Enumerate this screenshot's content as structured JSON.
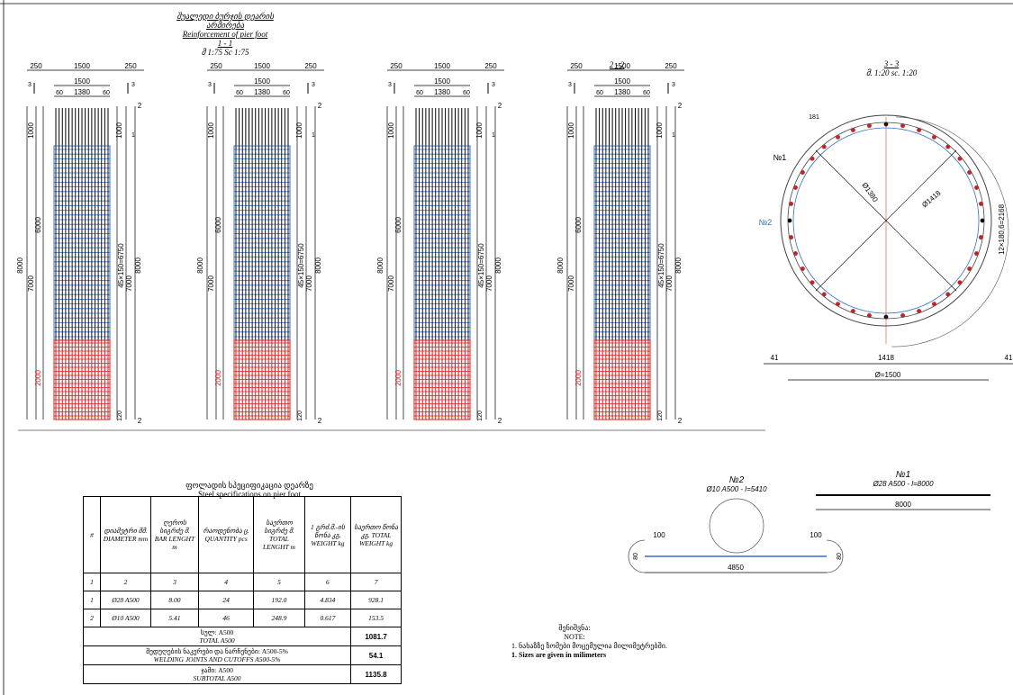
{
  "header": {
    "title_ka": "შუალედი ბურჯის დეარის არმირება",
    "title_en": "Reinforcement of pier foot",
    "section": "1 - 1",
    "scale": "მ 1:75 Sc 1:75"
  },
  "elevations": {
    "section2_label": "2 - 2",
    "dim_overall": "1500",
    "dim_side": "250",
    "dim_inner": "1500",
    "dim_core": "1380",
    "dim_edge": "60",
    "h_total": "8000",
    "h_top": "1000",
    "h_mid": "6000",
    "h_low": "7000",
    "h_bottom": "2000",
    "h_stirrup": "45×150=6750",
    "h_foot": "120",
    "cut_mark_3": "3",
    "cut_mark_2": "2",
    "cut_mark_1": "1"
  },
  "section33": {
    "label": "3 - 3",
    "scale": "მ. 1:20 sc. 1:20",
    "dim_181": "181",
    "bar1": "№1",
    "bar2": "№2",
    "d_inner": "Ø1380",
    "d_outer": "Ø1418",
    "arc_dim": "12×180,6=2168",
    "dim_41": "41",
    "dim_1418": "1418",
    "dim_1500": "Ø=1500"
  },
  "spec": {
    "title_ka": "ფოლადის სპეციფიკაცია დეარზე",
    "title_en": "Steel specifications on pier foot",
    "headers": [
      "#",
      "დიამეტრი მმ. DIAMETER mm",
      "ღეროს სიგრძე მ. BAR LENGHT m",
      "რაოდენობა ც. QUANTITY pcs",
      "საერთო სიგრძე მ. TOTAL LENGHT m",
      "1 გრძ.მ.-ის წონა კგ. WEIGHT kg",
      "საერთო წონა კგ. TOTAL WEIGHT kg"
    ],
    "numbers": [
      "1",
      "2",
      "3",
      "4",
      "5",
      "6",
      "7"
    ],
    "rows": [
      [
        "1",
        "Ø28 A500",
        "8.00",
        "24",
        "192.0",
        "4.834",
        "928.1"
      ],
      [
        "2",
        "Ø10 A500",
        "5.41",
        "46",
        "248.9",
        "0.617",
        "153.5"
      ]
    ],
    "total_label_ka": "სულ: A500",
    "total_label_en": "TOTAL A500",
    "total_value": "1081.7",
    "weld_label_ka": "შედუღების ნაკერები და ნარჩენები: A500-5%",
    "weld_label_en": "WELDING JOINTS AND CUTOFFS A500-5%",
    "weld_value": "54.1",
    "subtotal_label_ka": "ჯამი: A500",
    "subtotal_label_en": "SUBTOTAL A500",
    "subtotal_value": "1135.8"
  },
  "bars": {
    "bar2_title": "№2",
    "bar2_sub": "Ø10 A500 - l=5410",
    "bar2_len": "4850",
    "bar2_hook": "100",
    "bar2_end": "80",
    "bar1_title": "№1",
    "bar1_sub": "Ø28 A500 - l=8000",
    "bar1_len": "8000"
  },
  "note": {
    "title_ka": "შენიშვნა:",
    "title_en": "NOTE:",
    "line_ka": "1. ნახაზზე ზომები მოცემულია მილიმეტრებში.",
    "line_en": "1. Sizes are given in milimeters"
  },
  "colors": {
    "stirrup": "#2f6fd6",
    "lower": "#e01818",
    "ink": "#000000"
  }
}
